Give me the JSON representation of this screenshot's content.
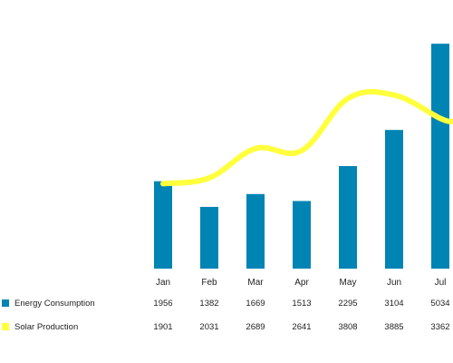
{
  "chart_data": {
    "type": "bar",
    "categories": [
      "Jan",
      "Feb",
      "Mar",
      "Apr",
      "May",
      "Jun",
      "Jul"
    ],
    "series": [
      {
        "name": "Energy Consumption",
        "type": "bar",
        "color": "#0084B4",
        "values": [
          1956,
          1382,
          1669,
          1513,
          2295,
          3104,
          5034
        ]
      },
      {
        "name": "Solar Production",
        "type": "line",
        "color": "#FFFF3D",
        "values": [
          1901,
          2031,
          2689,
          2641,
          3808,
          3885,
          3362
        ]
      }
    ],
    "ylim": [
      0,
      5200
    ],
    "grid": false,
    "legend": "bottom-left data table"
  }
}
